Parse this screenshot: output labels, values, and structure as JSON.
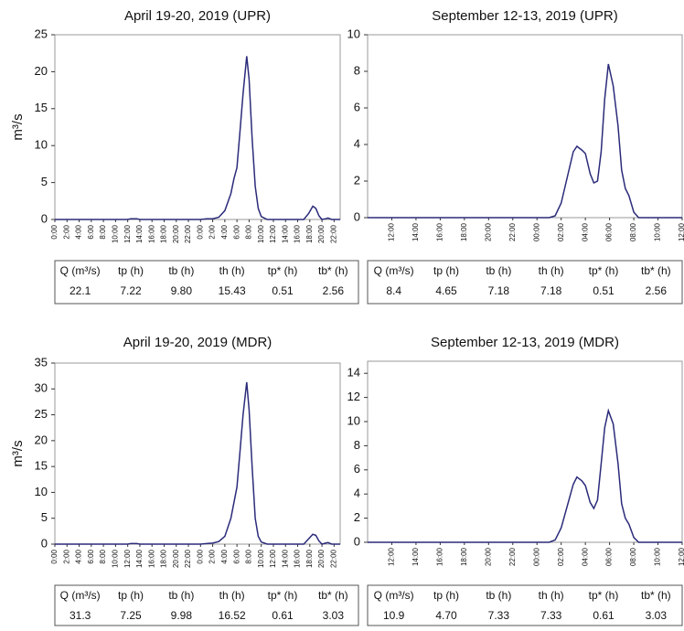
{
  "chart_data": [
    {
      "type": "line",
      "title": "April 19-20, 2019 (UPR)",
      "y_label": "m³/s",
      "xlim": [
        0,
        47
      ],
      "ylim": [
        0,
        25
      ],
      "yticks": [
        0,
        5,
        10,
        15,
        20,
        25
      ],
      "xticks": [
        {
          "value": 0,
          "label": "0:00"
        },
        {
          "value": 2,
          "label": "2:00"
        },
        {
          "value": 4,
          "label": "4:00"
        },
        {
          "value": 6,
          "label": "6:00"
        },
        {
          "value": 8,
          "label": "8:00"
        },
        {
          "value": 10,
          "label": "10:00"
        },
        {
          "value": 12,
          "label": "12:00"
        },
        {
          "value": 14,
          "label": "14:00"
        },
        {
          "value": 16,
          "label": "16:00"
        },
        {
          "value": 18,
          "label": "18:00"
        },
        {
          "value": 20,
          "label": "20:00"
        },
        {
          "value": 22,
          "label": "22:00"
        },
        {
          "value": 24,
          "label": "0:00"
        },
        {
          "value": 26,
          "label": "2:00"
        },
        {
          "value": 28,
          "label": "4:00"
        },
        {
          "value": 30,
          "label": "6:00"
        },
        {
          "value": 32,
          "label": "8:00"
        },
        {
          "value": 34,
          "label": "10:00"
        },
        {
          "value": 36,
          "label": "12:00"
        },
        {
          "value": 38,
          "label": "14:00"
        },
        {
          "value": 40,
          "label": "16:00"
        },
        {
          "value": 42,
          "label": "18:00"
        },
        {
          "value": 44,
          "label": "20:00"
        },
        {
          "value": 46,
          "label": "22:00"
        }
      ],
      "x": [
        0,
        12,
        12.5,
        13,
        13.5,
        14,
        24,
        25,
        26,
        27,
        28,
        29,
        29.5,
        30,
        30.5,
        31,
        31.6,
        32,
        32.5,
        33,
        33.5,
        34,
        35,
        41,
        41.8,
        42.5,
        43,
        43.5,
        44,
        44.6,
        45,
        45.6,
        47
      ],
      "series": [
        {
          "color": "#2b2b7a",
          "values": [
            0,
            0,
            0.1,
            0.1,
            0.1,
            0,
            0,
            0.1,
            0.1,
            0.3,
            1.2,
            3.5,
            5.5,
            7,
            12,
            17,
            22.1,
            19,
            11,
            4.5,
            1.5,
            0.4,
            0,
            0,
            0.8,
            1.8,
            1.5,
            0.5,
            0,
            0.1,
            0.2,
            0,
            0
          ]
        }
      ],
      "table": {
        "header": [
          "Q (m³/s)",
          "tp (h)",
          "tb (h)",
          "th (h)",
          "tp* (h)",
          "tb* (h)"
        ],
        "rows": [
          [
            "22.1",
            "7.22",
            "9.80",
            "15.43",
            "0.51",
            "2.56"
          ]
        ]
      }
    },
    {
      "type": "line",
      "title": "September 12-13, 2019 (UPR)",
      "xlim": [
        -2,
        24
      ],
      "ylim": [
        0,
        10
      ],
      "yticks": [
        0,
        2,
        4,
        6,
        8,
        10
      ],
      "xticks": [
        {
          "value": 0,
          "label": "12:00"
        },
        {
          "value": 2,
          "label": "14:00"
        },
        {
          "value": 4,
          "label": "16:00"
        },
        {
          "value": 6,
          "label": "18:00"
        },
        {
          "value": 8,
          "label": "20:00"
        },
        {
          "value": 10,
          "label": "22:00"
        },
        {
          "value": 12,
          "label": "00:00"
        },
        {
          "value": 14,
          "label": "02:00"
        },
        {
          "value": 16,
          "label": "04:00"
        },
        {
          "value": 18,
          "label": "06:00"
        },
        {
          "value": 20,
          "label": "08:00"
        },
        {
          "value": 22,
          "label": "10:00"
        },
        {
          "value": 24,
          "label": "12:00"
        }
      ],
      "x": [
        -2,
        13,
        13.5,
        14,
        14.5,
        15,
        15.3,
        15.7,
        16,
        16.4,
        16.7,
        17,
        17.3,
        17.6,
        17.9,
        18.3,
        18.7,
        19,
        19.3,
        19.6,
        20,
        20.4,
        24
      ],
      "series": [
        {
          "color": "#2b2b7a",
          "values": [
            0,
            0,
            0.1,
            0.8,
            2.2,
            3.6,
            3.9,
            3.7,
            3.5,
            2.4,
            1.9,
            2.0,
            3.6,
            6.5,
            8.4,
            7.2,
            5,
            2.6,
            1.6,
            1.2,
            0.3,
            0,
            0
          ]
        }
      ],
      "table": {
        "header": [
          "Q (m³/s)",
          "tp (h)",
          "tb (h)",
          "th (h)",
          "tp* (h)",
          "tb* (h)"
        ],
        "rows": [
          [
            "8.4",
            "4.65",
            "7.18",
            "7.18",
            "0.51",
            "2.56"
          ]
        ]
      }
    },
    {
      "type": "line",
      "title": "April 19-20, 2019 (MDR)",
      "y_label": "m³/s",
      "xlim": [
        0,
        47
      ],
      "ylim": [
        0,
        35
      ],
      "yticks": [
        0,
        5,
        10,
        15,
        20,
        25,
        30,
        35
      ],
      "xticks": [
        {
          "value": 0,
          "label": "0:00"
        },
        {
          "value": 2,
          "label": "2:00"
        },
        {
          "value": 4,
          "label": "4:00"
        },
        {
          "value": 6,
          "label": "6:00"
        },
        {
          "value": 8,
          "label": "8:00"
        },
        {
          "value": 10,
          "label": "10:00"
        },
        {
          "value": 12,
          "label": "12:00"
        },
        {
          "value": 14,
          "label": "14:00"
        },
        {
          "value": 16,
          "label": "16:00"
        },
        {
          "value": 18,
          "label": "18:00"
        },
        {
          "value": 20,
          "label": "20:00"
        },
        {
          "value": 22,
          "label": "22:00"
        },
        {
          "value": 24,
          "label": "0:00"
        },
        {
          "value": 26,
          "label": "2:00"
        },
        {
          "value": 28,
          "label": "4:00"
        },
        {
          "value": 30,
          "label": "6:00"
        },
        {
          "value": 32,
          "label": "8:00"
        },
        {
          "value": 34,
          "label": "10:00"
        },
        {
          "value": 36,
          "label": "12:00"
        },
        {
          "value": 38,
          "label": "14:00"
        },
        {
          "value": 40,
          "label": "16:00"
        },
        {
          "value": 42,
          "label": "18:00"
        },
        {
          "value": 44,
          "label": "20:00"
        },
        {
          "value": 46,
          "label": "22:00"
        }
      ],
      "x": [
        0,
        12,
        12.5,
        13,
        13.5,
        14,
        24,
        25,
        26,
        27,
        28,
        29,
        29.5,
        30,
        30.5,
        31,
        31.6,
        32,
        32.5,
        33,
        33.5,
        34,
        35,
        41,
        41.8,
        42.5,
        43,
        43.5,
        44,
        44.6,
        45,
        45.6,
        47
      ],
      "series": [
        {
          "color": "#2b2b7a",
          "values": [
            0,
            0,
            0.1,
            0.1,
            0.1,
            0,
            0,
            0.1,
            0.2,
            0.5,
            1.5,
            5,
            8,
            11,
            18,
            25,
            31.3,
            26,
            15,
            5,
            1.5,
            0.4,
            0,
            0,
            1,
            1.9,
            1.7,
            0.6,
            0,
            0.2,
            0.3,
            0,
            0
          ]
        }
      ],
      "table": {
        "header": [
          "Q (m³/s)",
          "tp (h)",
          "tb (h)",
          "th (h)",
          "tp* (h)",
          "tb* (h)"
        ],
        "rows": [
          [
            "31.3",
            "7.25",
            "9.98",
            "16.52",
            "0.61",
            "3.03"
          ]
        ]
      }
    },
    {
      "type": "line",
      "title": "September 12-13, 2019 (MDR)",
      "xlim": [
        -2,
        24
      ],
      "ylim": [
        0,
        15
      ],
      "yticks": [
        0,
        2,
        4,
        6,
        8,
        10,
        12,
        14
      ],
      "xticks": [
        {
          "value": 0,
          "label": "12:00"
        },
        {
          "value": 2,
          "label": "14:00"
        },
        {
          "value": 4,
          "label": "16:00"
        },
        {
          "value": 6,
          "label": "18:00"
        },
        {
          "value": 8,
          "label": "20:00"
        },
        {
          "value": 10,
          "label": "22:00"
        },
        {
          "value": 12,
          "label": "00:00"
        },
        {
          "value": 14,
          "label": "02:00"
        },
        {
          "value": 16,
          "label": "04:00"
        },
        {
          "value": 18,
          "label": "06:00"
        },
        {
          "value": 20,
          "label": "08:00"
        },
        {
          "value": 22,
          "label": "10:00"
        },
        {
          "value": 24,
          "label": "12:00"
        }
      ],
      "x": [
        -2,
        13,
        13.5,
        14,
        14.5,
        15,
        15.3,
        15.7,
        16,
        16.4,
        16.7,
        17,
        17.3,
        17.6,
        17.9,
        18.3,
        18.7,
        19,
        19.3,
        19.6,
        20,
        20.4,
        24
      ],
      "series": [
        {
          "color": "#2b2b7a",
          "values": [
            0,
            0,
            0.2,
            1.2,
            3,
            4.8,
            5.4,
            5.1,
            4.7,
            3.3,
            2.8,
            3.5,
            6.5,
            9.5,
            10.9,
            9.8,
            6.5,
            3.2,
            2,
            1.5,
            0.4,
            0,
            0
          ]
        }
      ],
      "table": {
        "header": [
          "Q (m³/s)",
          "tp (h)",
          "tb (h)",
          "th (h)",
          "tp* (h)",
          "tb* (h)"
        ],
        "rows": [
          [
            "10.9",
            "4.70",
            "7.33",
            "7.33",
            "0.61",
            "3.03"
          ]
        ]
      }
    }
  ]
}
